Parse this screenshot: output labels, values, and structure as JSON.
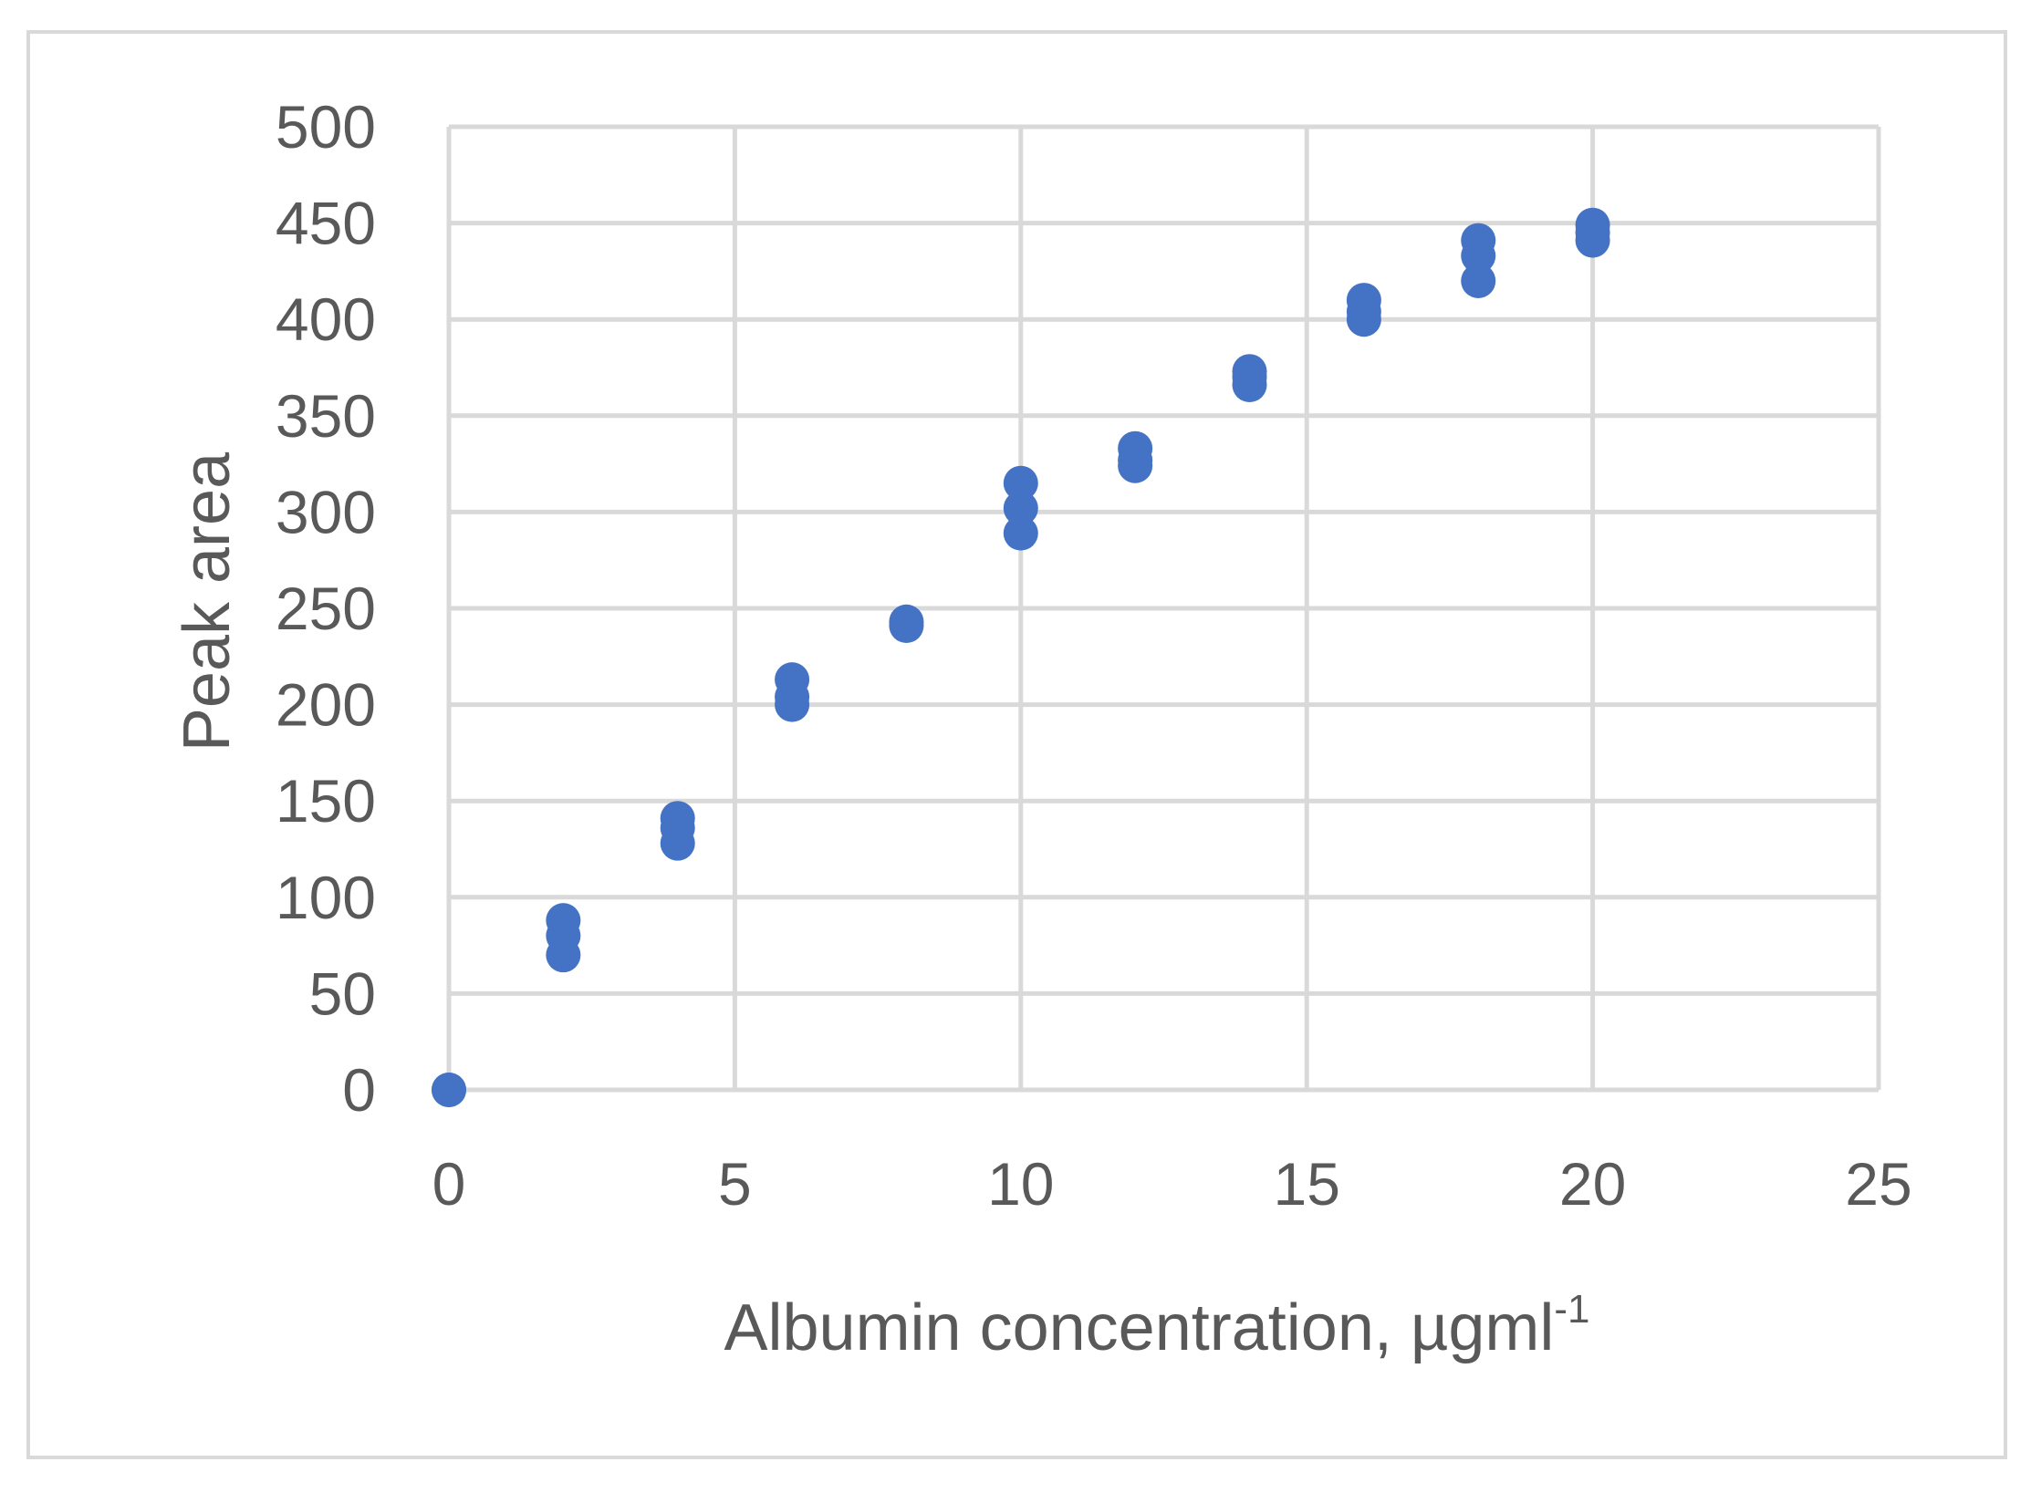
{
  "chart_data": {
    "type": "scatter",
    "title": "",
    "xlabel": "Albumin concentration, µgml",
    "xlabel_superscript": "-1",
    "ylabel": "Peak area",
    "xlim": [
      0,
      25
    ],
    "ylim": [
      0,
      500
    ],
    "x_ticks": [
      "0",
      "5",
      "10",
      "15",
      "20",
      "25"
    ],
    "y_ticks": [
      "0",
      "50",
      "100",
      "150",
      "200",
      "250",
      "300",
      "350",
      "400",
      "450",
      "500"
    ],
    "grid": true,
    "legend": "none",
    "marker_color": "#4472c4",
    "series": [
      {
        "points": [
          {
            "x": 0,
            "y": 0
          },
          {
            "x": 0,
            "y": 0
          },
          {
            "x": 2,
            "y": 70
          },
          {
            "x": 2,
            "y": 80
          },
          {
            "x": 2,
            "y": 88
          },
          {
            "x": 4,
            "y": 128
          },
          {
            "x": 4,
            "y": 136
          },
          {
            "x": 4,
            "y": 141
          },
          {
            "x": 6,
            "y": 200
          },
          {
            "x": 6,
            "y": 204
          },
          {
            "x": 6,
            "y": 213
          },
          {
            "x": 8,
            "y": 241
          },
          {
            "x": 8,
            "y": 243
          },
          {
            "x": 10,
            "y": 289
          },
          {
            "x": 10,
            "y": 302
          },
          {
            "x": 10,
            "y": 315
          },
          {
            "x": 12,
            "y": 324
          },
          {
            "x": 12,
            "y": 327
          },
          {
            "x": 12,
            "y": 333
          },
          {
            "x": 14,
            "y": 366
          },
          {
            "x": 14,
            "y": 370
          },
          {
            "x": 14,
            "y": 373
          },
          {
            "x": 16,
            "y": 400
          },
          {
            "x": 16,
            "y": 404
          },
          {
            "x": 16,
            "y": 410
          },
          {
            "x": 18,
            "y": 420
          },
          {
            "x": 18,
            "y": 433
          },
          {
            "x": 18,
            "y": 441
          },
          {
            "x": 20,
            "y": 441
          },
          {
            "x": 20,
            "y": 445
          },
          {
            "x": 20,
            "y": 449
          }
        ]
      }
    ]
  }
}
